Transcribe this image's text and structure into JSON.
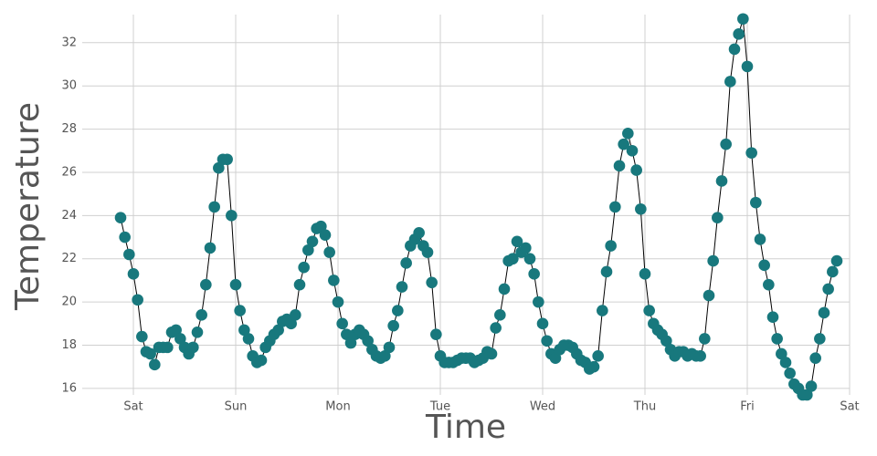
{
  "chart_data": {
    "type": "line",
    "x_label": "Time",
    "y_label": "Temperature",
    "categories": [
      null,
      null,
      null,
      "Sat",
      null,
      null,
      null,
      null,
      null,
      null,
      null,
      null,
      null,
      null,
      null,
      null,
      null,
      null,
      null,
      null,
      null,
      null,
      null,
      null,
      null,
      null,
      null,
      "Sun",
      null,
      null,
      null,
      null,
      null,
      null,
      null,
      null,
      null,
      null,
      null,
      null,
      null,
      null,
      null,
      null,
      null,
      null,
      null,
      null,
      null,
      null,
      null,
      "Mon",
      null,
      null,
      null,
      null,
      null,
      null,
      null,
      null,
      null,
      null,
      null,
      null,
      null,
      null,
      null,
      null,
      null,
      null,
      null,
      null,
      null,
      null,
      null,
      "Tue",
      null,
      null,
      null,
      null,
      null,
      null,
      null,
      null,
      null,
      null,
      null,
      null,
      null,
      null,
      null,
      null,
      null,
      null,
      null,
      null,
      null,
      null,
      null,
      "Wed",
      null,
      null,
      null,
      null,
      null,
      null,
      null,
      null,
      null,
      null,
      null,
      null,
      null,
      null,
      null,
      null,
      null,
      null,
      null,
      null,
      null,
      null,
      null,
      "Thu",
      null,
      null,
      null,
      null,
      null,
      null,
      null,
      null,
      null,
      null,
      null,
      null,
      null,
      null,
      null,
      null,
      null,
      null,
      null,
      null,
      null,
      null,
      null,
      "Fri",
      null,
      null,
      null,
      null,
      null,
      null,
      null,
      null,
      null,
      null,
      null,
      null,
      null,
      null,
      null,
      null,
      null,
      null,
      null,
      null,
      null,
      null,
      null,
      "Sat"
    ],
    "values": [
      23.9,
      23.0,
      22.2,
      21.3,
      20.1,
      18.4,
      17.7,
      17.6,
      17.1,
      17.9,
      17.9,
      17.9,
      18.6,
      18.7,
      18.3,
      17.9,
      17.6,
      17.9,
      18.6,
      19.4,
      20.8,
      22.5,
      24.4,
      26.2,
      26.6,
      26.6,
      24.0,
      20.8,
      19.6,
      18.7,
      18.3,
      17.5,
      17.2,
      17.3,
      17.9,
      18.2,
      18.5,
      18.7,
      19.1,
      19.2,
      19.0,
      19.4,
      20.8,
      21.6,
      22.4,
      22.8,
      23.4,
      23.5,
      23.1,
      22.3,
      21.0,
      20.0,
      19.0,
      18.5,
      18.1,
      18.5,
      18.7,
      18.5,
      18.2,
      17.8,
      17.5,
      17.4,
      17.5,
      17.9,
      18.9,
      19.6,
      20.7,
      21.8,
      22.6,
      22.9,
      23.2,
      22.6,
      22.3,
      20.9,
      18.5,
      17.5,
      17.2,
      17.2,
      17.2,
      17.3,
      17.4,
      17.4,
      17.4,
      17.2,
      17.3,
      17.4,
      17.7,
      17.6,
      18.8,
      19.4,
      20.6,
      21.9,
      22.0,
      22.8,
      22.3,
      22.5,
      22.0,
      21.3,
      20.0,
      19.0,
      18.2,
      17.6,
      17.4,
      17.8,
      18.0,
      18.0,
      17.9,
      17.6,
      17.3,
      17.2,
      16.9,
      17.0,
      17.5,
      19.6,
      21.4,
      22.6,
      24.4,
      26.3,
      27.3,
      27.8,
      27.0,
      26.1,
      24.3,
      21.3,
      19.6,
      19.0,
      18.7,
      18.5,
      18.2,
      17.8,
      17.5,
      17.7,
      17.7,
      17.5,
      17.6,
      17.5,
      17.5,
      18.3,
      20.3,
      21.9,
      23.9,
      25.6,
      27.3,
      30.2,
      31.7,
      32.4,
      33.1,
      30.9,
      26.9,
      24.6,
      22.9,
      21.7,
      20.8,
      19.3,
      18.3,
      17.6,
      17.2,
      16.7,
      16.2,
      16.0,
      15.7,
      15.7,
      16.1,
      17.4,
      18.3,
      19.5,
      20.6,
      21.4,
      21.9,
      null,
      null,
      null
    ],
    "color": "#18787d",
    "line_color": "#000000",
    "ylim": [
      15.7,
      33.3
    ],
    "yticks": [
      16,
      18,
      20,
      22,
      24,
      26,
      28,
      30,
      32
    ],
    "grid": true
  }
}
